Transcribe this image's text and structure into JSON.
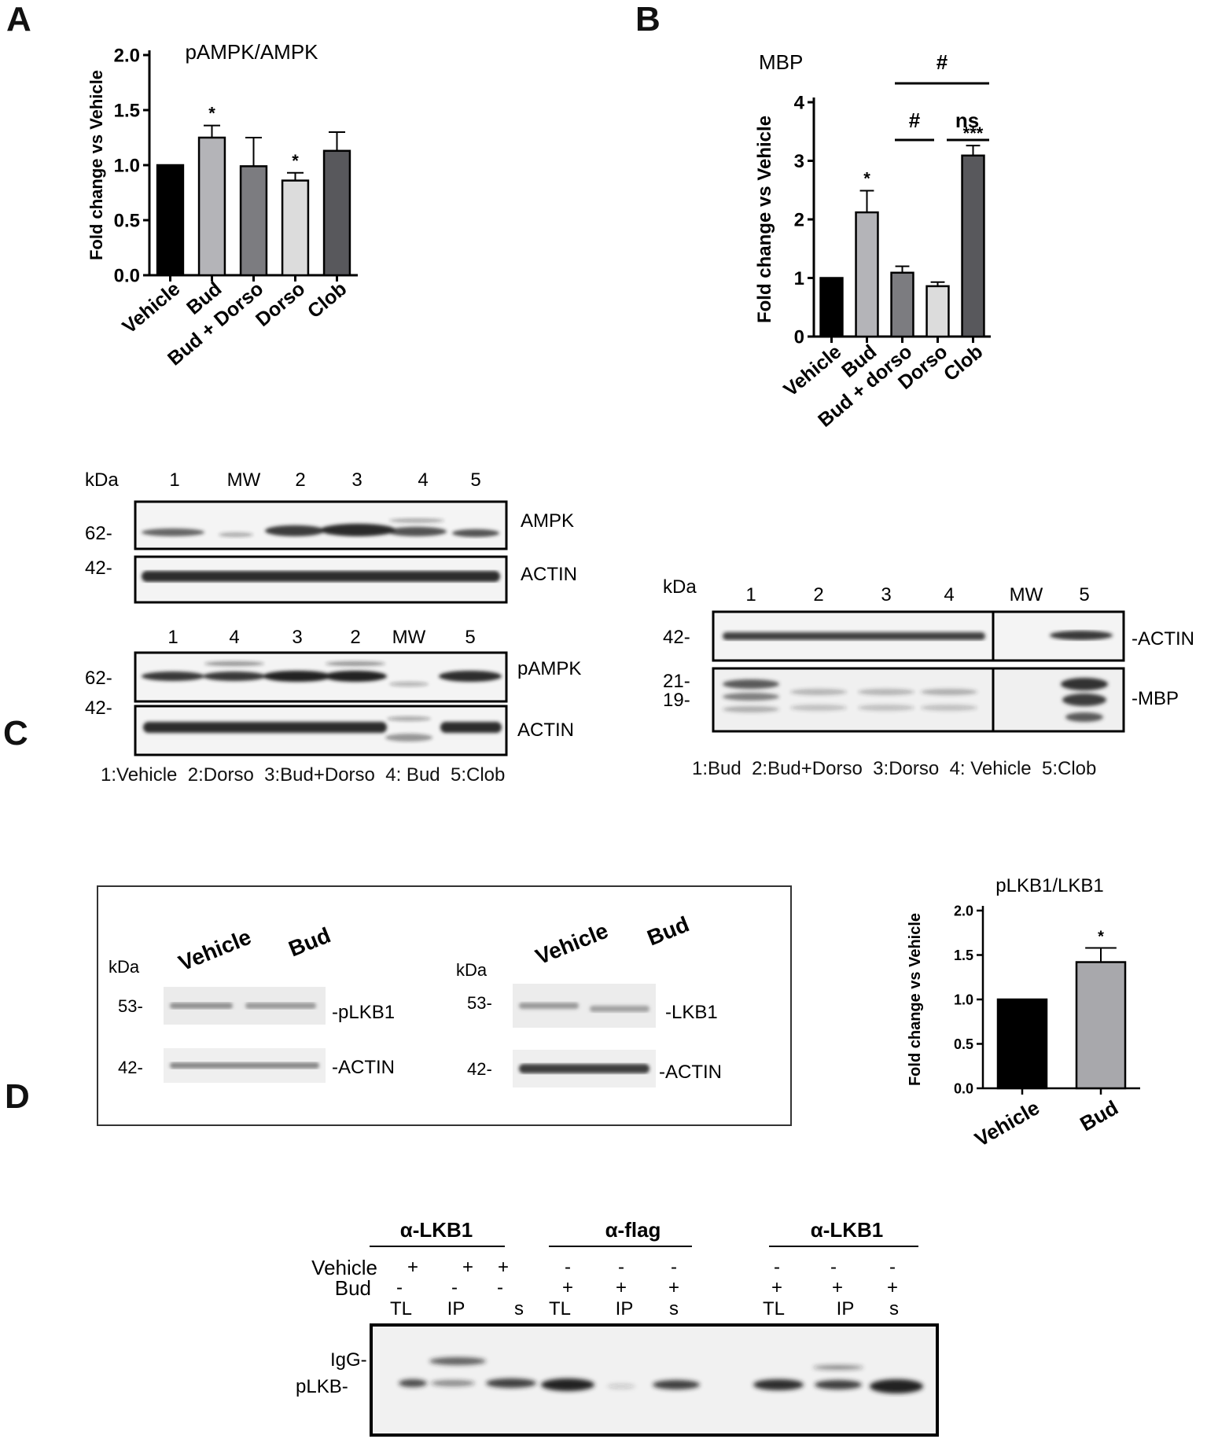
{
  "panels": {
    "A": {
      "letter": "A",
      "blot_ampk": {
        "kda_label": "kDa",
        "lanes": [
          "1",
          "MW",
          "2",
          "3",
          "4",
          "5"
        ],
        "mw_ampk": "62-",
        "mw_actin": "42-",
        "label_top": "AMPK",
        "label_bottom": "ACTIN"
      },
      "blot_pampk": {
        "lanes": [
          "1",
          "4",
          "3",
          "2",
          "MW",
          "5"
        ],
        "mw_pampk": "62-",
        "mw_actin": "42-",
        "label_top": "pAMPK",
        "label_bottom": "ACTIN"
      },
      "legend": [
        "1:Vehicle",
        "2:Dorso",
        "3:Bud+Dorso",
        "4: Bud",
        "5:Clob"
      ]
    },
    "B": {
      "letter": "B",
      "sig_labels": [
        "#",
        "#",
        "ns"
      ],
      "blot": {
        "kda_label": "kDa",
        "lanes": [
          "1",
          "2",
          "3",
          "4",
          "MW",
          "5"
        ],
        "mw_actin": "42-",
        "mw_mbp_1": "21-",
        "mw_mbp_2": "19-",
        "label_actin": "-ACTIN",
        "label_mbp": "-MBP"
      },
      "legend": [
        "1:Bud",
        "2:Bud+Dorso",
        "3:Dorso",
        "4: Vehicle",
        "5:Clob"
      ]
    },
    "C": {
      "letter": "C",
      "blot_left": {
        "kda_label": "kDa",
        "lanes": [
          "Vehicle",
          "Bud"
        ],
        "mw_top": "53-",
        "mw_bottom": "42-",
        "label_top": "-pLKB1",
        "label_bottom": "-ACTIN"
      },
      "blot_right": {
        "kda_label": "kDa",
        "lanes": [
          "Vehicle",
          "Bud"
        ],
        "mw_top": "53-",
        "mw_bottom": "42-",
        "label_top": "-LKB1",
        "label_bottom": "-ACTIN"
      }
    },
    "D": {
      "letter": "D",
      "groups": [
        "α-LKB1",
        "α-flag",
        "α-LKB1"
      ],
      "row_vehicle_label": "Vehicle",
      "row_bud_label": "Bud",
      "vehicle_signs": [
        "+",
        "+",
        "+",
        "-",
        "-",
        "-",
        "-",
        "-",
        "-"
      ],
      "bud_signs": [
        "-",
        "-",
        "-",
        "+",
        "+",
        "+",
        "+",
        "+",
        "+"
      ],
      "fractions": [
        "TL",
        "IP",
        "s",
        "TL",
        "IP",
        "s",
        "TL",
        "IP",
        "s"
      ],
      "band_igg": "IgG-",
      "band_plkb": "pLKB-"
    }
  },
  "colors": {
    "black": "#000000",
    "light_gray": "#b4b4b8",
    "mid_gray": "#7c7c80",
    "pale_gray": "#dcdcdc",
    "dark_gray": "#58585c"
  },
  "chart_data": [
    {
      "type": "bar",
      "title": "pAMPK/AMPK",
      "ylabel": "Fold change vs Vehicle",
      "xlabel": "",
      "categories": [
        "Vehicle",
        "Bud",
        "Bud + Dorso",
        "Dorso",
        "Clob"
      ],
      "values": [
        1.0,
        1.25,
        0.99,
        0.86,
        1.13
      ],
      "errors": [
        0,
        0.11,
        0.26,
        0.07,
        0.17
      ],
      "annotations": [
        "",
        "*",
        "",
        "*",
        ""
      ],
      "colors": [
        "#000000",
        "#b4b4b8",
        "#7c7c80",
        "#dcdcdc",
        "#58585c"
      ],
      "ylim": [
        0,
        2.0
      ],
      "yticks": [
        "0.0",
        "0.5",
        "1.0",
        "1.5",
        "2.0"
      ]
    },
    {
      "type": "bar",
      "title": "MBP",
      "ylabel": "Fold change vs Vehicle",
      "xlabel": "",
      "categories": [
        "Vehicle",
        "Bud",
        "Bud + dorso",
        "Dorso",
        "Clob"
      ],
      "values": [
        1.0,
        2.12,
        1.09,
        0.86,
        3.09
      ],
      "errors": [
        0,
        0.37,
        0.11,
        0.07,
        0.17
      ],
      "annotations": [
        "",
        "*",
        "",
        "",
        "***"
      ],
      "colors": [
        "#000000",
        "#b4b4b8",
        "#7c7c80",
        "#dcdcdc",
        "#58585c"
      ],
      "ylim": [
        0,
        4
      ],
      "yticks": [
        "0",
        "1",
        "2",
        "3",
        "4"
      ]
    },
    {
      "type": "bar",
      "title": "pLKB1/LKB1",
      "ylabel": "Fold change vs Vehicle",
      "xlabel": "",
      "categories": [
        "Vehicle",
        "Bud"
      ],
      "values": [
        1.0,
        1.42
      ],
      "errors": [
        0,
        0.16
      ],
      "annotations": [
        "",
        "*"
      ],
      "colors": [
        "#000000",
        "#a8a8ac"
      ],
      "ylim": [
        0,
        2.0
      ],
      "yticks": [
        "0.0",
        "0.5",
        "1.0",
        "1.5",
        "2.0"
      ]
    }
  ]
}
